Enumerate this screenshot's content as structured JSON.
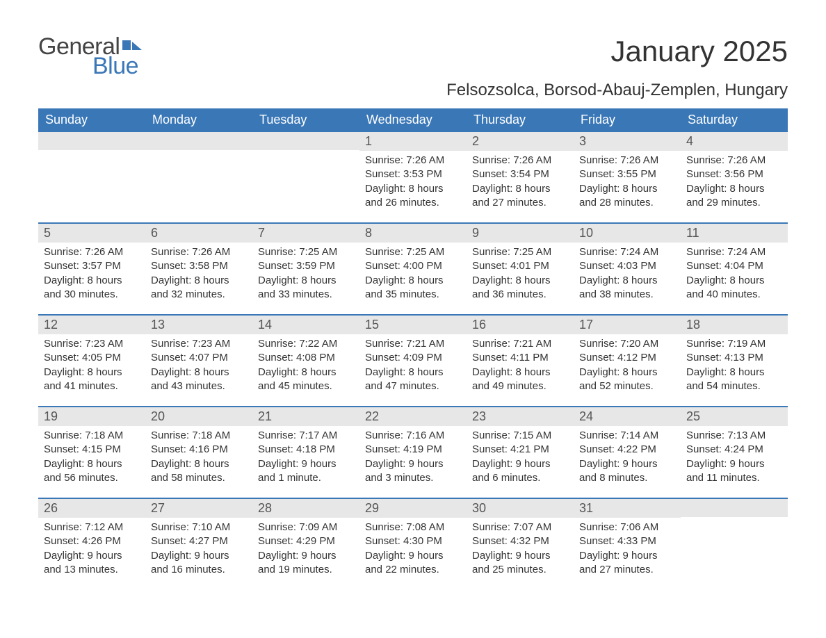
{
  "logo": {
    "text1": "General",
    "text2": "Blue",
    "flag_color": "#3a77b7"
  },
  "title": "January 2025",
  "location": "Felsozsolca, Borsod-Abauj-Zemplen, Hungary",
  "colors": {
    "header_bg": "#3a77b7",
    "header_text": "#ffffff",
    "daynum_bg": "#e7e7e7",
    "rule": "#3a77b7",
    "body_text": "#333333"
  },
  "font": {
    "family": "Arial",
    "title_size": 42,
    "location_size": 24,
    "header_size": 18,
    "body_size": 15
  },
  "day_headers": [
    "Sunday",
    "Monday",
    "Tuesday",
    "Wednesday",
    "Thursday",
    "Friday",
    "Saturday"
  ],
  "weeks": [
    [
      {
        "n": "",
        "l1": "",
        "l2": "",
        "l3": "",
        "l4": ""
      },
      {
        "n": "",
        "l1": "",
        "l2": "",
        "l3": "",
        "l4": ""
      },
      {
        "n": "",
        "l1": "",
        "l2": "",
        "l3": "",
        "l4": ""
      },
      {
        "n": "1",
        "l1": "Sunrise: 7:26 AM",
        "l2": "Sunset: 3:53 PM",
        "l3": "Daylight: 8 hours",
        "l4": "and 26 minutes."
      },
      {
        "n": "2",
        "l1": "Sunrise: 7:26 AM",
        "l2": "Sunset: 3:54 PM",
        "l3": "Daylight: 8 hours",
        "l4": "and 27 minutes."
      },
      {
        "n": "3",
        "l1": "Sunrise: 7:26 AM",
        "l2": "Sunset: 3:55 PM",
        "l3": "Daylight: 8 hours",
        "l4": "and 28 minutes."
      },
      {
        "n": "4",
        "l1": "Sunrise: 7:26 AM",
        "l2": "Sunset: 3:56 PM",
        "l3": "Daylight: 8 hours",
        "l4": "and 29 minutes."
      }
    ],
    [
      {
        "n": "5",
        "l1": "Sunrise: 7:26 AM",
        "l2": "Sunset: 3:57 PM",
        "l3": "Daylight: 8 hours",
        "l4": "and 30 minutes."
      },
      {
        "n": "6",
        "l1": "Sunrise: 7:26 AM",
        "l2": "Sunset: 3:58 PM",
        "l3": "Daylight: 8 hours",
        "l4": "and 32 minutes."
      },
      {
        "n": "7",
        "l1": "Sunrise: 7:25 AM",
        "l2": "Sunset: 3:59 PM",
        "l3": "Daylight: 8 hours",
        "l4": "and 33 minutes."
      },
      {
        "n": "8",
        "l1": "Sunrise: 7:25 AM",
        "l2": "Sunset: 4:00 PM",
        "l3": "Daylight: 8 hours",
        "l4": "and 35 minutes."
      },
      {
        "n": "9",
        "l1": "Sunrise: 7:25 AM",
        "l2": "Sunset: 4:01 PM",
        "l3": "Daylight: 8 hours",
        "l4": "and 36 minutes."
      },
      {
        "n": "10",
        "l1": "Sunrise: 7:24 AM",
        "l2": "Sunset: 4:03 PM",
        "l3": "Daylight: 8 hours",
        "l4": "and 38 minutes."
      },
      {
        "n": "11",
        "l1": "Sunrise: 7:24 AM",
        "l2": "Sunset: 4:04 PM",
        "l3": "Daylight: 8 hours",
        "l4": "and 40 minutes."
      }
    ],
    [
      {
        "n": "12",
        "l1": "Sunrise: 7:23 AM",
        "l2": "Sunset: 4:05 PM",
        "l3": "Daylight: 8 hours",
        "l4": "and 41 minutes."
      },
      {
        "n": "13",
        "l1": "Sunrise: 7:23 AM",
        "l2": "Sunset: 4:07 PM",
        "l3": "Daylight: 8 hours",
        "l4": "and 43 minutes."
      },
      {
        "n": "14",
        "l1": "Sunrise: 7:22 AM",
        "l2": "Sunset: 4:08 PM",
        "l3": "Daylight: 8 hours",
        "l4": "and 45 minutes."
      },
      {
        "n": "15",
        "l1": "Sunrise: 7:21 AM",
        "l2": "Sunset: 4:09 PM",
        "l3": "Daylight: 8 hours",
        "l4": "and 47 minutes."
      },
      {
        "n": "16",
        "l1": "Sunrise: 7:21 AM",
        "l2": "Sunset: 4:11 PM",
        "l3": "Daylight: 8 hours",
        "l4": "and 49 minutes."
      },
      {
        "n": "17",
        "l1": "Sunrise: 7:20 AM",
        "l2": "Sunset: 4:12 PM",
        "l3": "Daylight: 8 hours",
        "l4": "and 52 minutes."
      },
      {
        "n": "18",
        "l1": "Sunrise: 7:19 AM",
        "l2": "Sunset: 4:13 PM",
        "l3": "Daylight: 8 hours",
        "l4": "and 54 minutes."
      }
    ],
    [
      {
        "n": "19",
        "l1": "Sunrise: 7:18 AM",
        "l2": "Sunset: 4:15 PM",
        "l3": "Daylight: 8 hours",
        "l4": "and 56 minutes."
      },
      {
        "n": "20",
        "l1": "Sunrise: 7:18 AM",
        "l2": "Sunset: 4:16 PM",
        "l3": "Daylight: 8 hours",
        "l4": "and 58 minutes."
      },
      {
        "n": "21",
        "l1": "Sunrise: 7:17 AM",
        "l2": "Sunset: 4:18 PM",
        "l3": "Daylight: 9 hours",
        "l4": "and 1 minute."
      },
      {
        "n": "22",
        "l1": "Sunrise: 7:16 AM",
        "l2": "Sunset: 4:19 PM",
        "l3": "Daylight: 9 hours",
        "l4": "and 3 minutes."
      },
      {
        "n": "23",
        "l1": "Sunrise: 7:15 AM",
        "l2": "Sunset: 4:21 PM",
        "l3": "Daylight: 9 hours",
        "l4": "and 6 minutes."
      },
      {
        "n": "24",
        "l1": "Sunrise: 7:14 AM",
        "l2": "Sunset: 4:22 PM",
        "l3": "Daylight: 9 hours",
        "l4": "and 8 minutes."
      },
      {
        "n": "25",
        "l1": "Sunrise: 7:13 AM",
        "l2": "Sunset: 4:24 PM",
        "l3": "Daylight: 9 hours",
        "l4": "and 11 minutes."
      }
    ],
    [
      {
        "n": "26",
        "l1": "Sunrise: 7:12 AM",
        "l2": "Sunset: 4:26 PM",
        "l3": "Daylight: 9 hours",
        "l4": "and 13 minutes."
      },
      {
        "n": "27",
        "l1": "Sunrise: 7:10 AM",
        "l2": "Sunset: 4:27 PM",
        "l3": "Daylight: 9 hours",
        "l4": "and 16 minutes."
      },
      {
        "n": "28",
        "l1": "Sunrise: 7:09 AM",
        "l2": "Sunset: 4:29 PM",
        "l3": "Daylight: 9 hours",
        "l4": "and 19 minutes."
      },
      {
        "n": "29",
        "l1": "Sunrise: 7:08 AM",
        "l2": "Sunset: 4:30 PM",
        "l3": "Daylight: 9 hours",
        "l4": "and 22 minutes."
      },
      {
        "n": "30",
        "l1": "Sunrise: 7:07 AM",
        "l2": "Sunset: 4:32 PM",
        "l3": "Daylight: 9 hours",
        "l4": "and 25 minutes."
      },
      {
        "n": "31",
        "l1": "Sunrise: 7:06 AM",
        "l2": "Sunset: 4:33 PM",
        "l3": "Daylight: 9 hours",
        "l4": "and 27 minutes."
      },
      {
        "n": "",
        "l1": "",
        "l2": "",
        "l3": "",
        "l4": ""
      }
    ]
  ]
}
